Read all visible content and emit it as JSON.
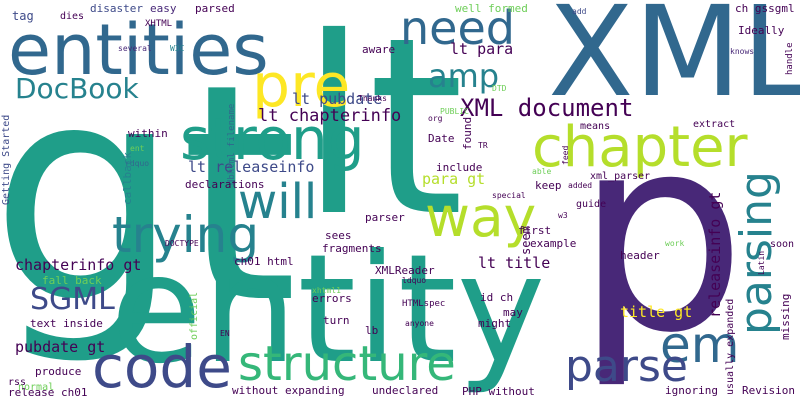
{
  "words": [
    {
      "text": "gt"
    },
    {
      "text": "lt"
    },
    {
      "text": "XML"
    },
    {
      "text": "p"
    },
    {
      "text": "entity"
    },
    {
      "text": "entities"
    },
    {
      "text": "strong"
    },
    {
      "text": "chapter"
    },
    {
      "text": "pre"
    },
    {
      "text": "code"
    },
    {
      "text": "structure"
    },
    {
      "text": "need"
    },
    {
      "text": "way"
    },
    {
      "text": "trying"
    },
    {
      "text": "will"
    },
    {
      "text": "em"
    },
    {
      "text": "parse"
    },
    {
      "text": "parsing"
    },
    {
      "text": "amp"
    },
    {
      "text": "DocBook"
    },
    {
      "text": "SGML"
    },
    {
      "text": "XML document"
    },
    {
      "text": "lt chapterinfo"
    },
    {
      "text": "lt para"
    },
    {
      "text": "lt pubdate"
    },
    {
      "text": "lt releaseinfo"
    },
    {
      "text": "chapterinfo gt"
    },
    {
      "text": "pubdate gt"
    },
    {
      "text": "lt title"
    },
    {
      "text": "title gt"
    },
    {
      "text": "para gt"
    },
    {
      "text": "releaseinfo gt"
    },
    {
      "text": "id ch"
    },
    {
      "text": "ch gssgml"
    },
    {
      "text": "tag"
    },
    {
      "text": "dies"
    },
    {
      "text": "disaster"
    },
    {
      "text": "easy"
    },
    {
      "text": "parsed"
    },
    {
      "text": "well formed"
    },
    {
      "text": "XHTML"
    },
    {
      "text": "add"
    },
    {
      "text": "Ideally"
    },
    {
      "text": "dbhtml filename"
    },
    {
      "text": "Getting Started"
    },
    {
      "text": "within"
    },
    {
      "text": "callback"
    },
    {
      "text": "rdquo"
    },
    {
      "text": "aware"
    },
    {
      "text": "declarations"
    },
    {
      "text": "Date"
    },
    {
      "text": "include"
    },
    {
      "text": "found"
    },
    {
      "text": "seem"
    },
    {
      "text": "keep"
    },
    {
      "text": "xml_parser"
    },
    {
      "text": "means"
    },
    {
      "text": "extract"
    },
    {
      "text": "Revision"
    },
    {
      "text": "knows"
    },
    {
      "text": "handle"
    },
    {
      "text": "several"
    },
    {
      "text": "W3C"
    },
    {
      "text": "Thanks"
    },
    {
      "text": "PUBLIC"
    },
    {
      "text": "org"
    },
    {
      "text": "DTD"
    },
    {
      "text": "TR"
    },
    {
      "text": "ent"
    },
    {
      "text": "able"
    },
    {
      "text": "feed"
    },
    {
      "text": "special"
    },
    {
      "text": "added"
    },
    {
      "text": "DOCTYPE"
    },
    {
      "text": "parser"
    },
    {
      "text": "guide"
    },
    {
      "text": "w3"
    },
    {
      "text": "first"
    },
    {
      "text": "example"
    },
    {
      "text": "header"
    },
    {
      "text": "sees"
    },
    {
      "text": "fragments"
    },
    {
      "text": "work"
    },
    {
      "text": "Latin"
    },
    {
      "text": "soon"
    },
    {
      "text": "missing"
    },
    {
      "text": "usually expanded"
    },
    {
      "text": "fall back"
    },
    {
      "text": "ch01 html"
    },
    {
      "text": "XMLReader"
    },
    {
      "text": "xhtml1"
    },
    {
      "text": "ldquo"
    },
    {
      "text": "errors"
    },
    {
      "text": "may"
    },
    {
      "text": "might"
    },
    {
      "text": "turn"
    },
    {
      "text": "HTMLspec"
    },
    {
      "text": "text inside"
    },
    {
      "text": "lb"
    },
    {
      "text": "anyone"
    },
    {
      "text": "official"
    },
    {
      "text": "EN"
    },
    {
      "text": "produce"
    },
    {
      "text": "rss"
    },
    {
      "text": "normal"
    },
    {
      "text": "release ch01"
    },
    {
      "text": "without expanding"
    },
    {
      "text": "undeclared"
    },
    {
      "text": "PHP without"
    },
    {
      "text": "ignoring"
    }
  ],
  "colors": {
    "background": "#ffffff",
    "palette": [
      "#440154",
      "#482878",
      "#3e4a89",
      "#31688e",
      "#26828e",
      "#1f9e89",
      "#35b779",
      "#6ece58",
      "#b5de2b",
      "#fde725"
    ]
  }
}
